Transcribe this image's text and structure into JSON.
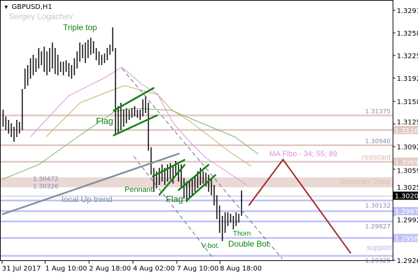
{
  "header": {
    "symbol": "GBPUSD,H1",
    "author": "Sergey Logachev"
  },
  "colors": {
    "bars": "#000000",
    "pink_level": "#e0c8c0",
    "blue_level": "#c0c0f8",
    "zone": "#ead8d4",
    "trend": "#8090a0",
    "pattern": "#108010",
    "forecast": "#a02828",
    "ma34": "#e090e0",
    "ma55": "#c0b060",
    "ma89": "#80b070",
    "channel": "#607080"
  },
  "chart_data": {
    "type": "bar",
    "title": "GBPUSD,H1",
    "ylim": [
      1.2926,
      1.3306
    ],
    "y_ticks": [
      "1.32910",
      "1.32580",
      "1.32250",
      "1.31920",
      "1.31580",
      "1.31250",
      "1.30920",
      "1.30590",
      "1.30250",
      "1.29920",
      "1.29260"
    ],
    "x_ticks": [
      {
        "label": "31 Jul 2017",
        "bar": -0.25
      },
      {
        "label": "1 Aug 10:00",
        "bar": 15.5
      },
      {
        "label": "2 Aug 18:00",
        "bar": 31.5
      },
      {
        "label": "4 Aug 02:00",
        "bar": 47.5
      },
      {
        "label": "7 Aug 10:00",
        "bar": 63.5
      },
      {
        "label": "8 Aug 18:00",
        "bar": 79.25
      }
    ],
    "bars_high": [
      1.3146,
      1.3136,
      1.3131,
      1.3126,
      1.3121,
      1.3131,
      1.3128,
      1.3176,
      1.3206,
      1.3211,
      1.3221,
      1.3226,
      1.3221,
      1.3236,
      1.3231,
      1.3238,
      1.3231,
      1.3236,
      1.3244,
      1.3236,
      1.3226,
      1.3216,
      1.3216,
      1.3218,
      1.3214,
      1.3211,
      1.3221,
      1.3231,
      1.3244,
      1.3241,
      1.3244,
      1.3248,
      1.3251,
      1.3246,
      1.3236,
      1.3231,
      1.3226,
      1.3228,
      1.3236,
      1.3241,
      1.3266,
      1.3236,
      1.3151,
      1.3156,
      1.3146,
      1.3148,
      1.3146,
      1.3148,
      1.3151,
      1.3146,
      1.3146,
      1.3161,
      1.3166,
      1.3156,
      1.3091,
      1.3061,
      1.3056,
      1.3061,
      1.3066,
      1.3061,
      1.3066,
      1.3068,
      1.3064,
      1.3071,
      1.3066,
      1.3066,
      1.3046,
      1.3041,
      1.3041,
      1.3046,
      1.3048,
      1.3056,
      1.3061,
      1.3056,
      1.3054,
      1.3051,
      1.3046,
      1.3036,
      1.3021,
      1.3006,
      1.2991,
      1.2996,
      1.2996,
      1.2994,
      1.2991,
      1.2996,
      1.2994,
      1.3028
    ],
    "bars_low": [
      1.3121,
      1.3116,
      1.3111,
      1.3106,
      1.3099,
      1.3106,
      1.3111,
      1.3116,
      1.3176,
      1.3181,
      1.3191,
      1.3196,
      1.3201,
      1.3206,
      1.3211,
      1.3201,
      1.3196,
      1.3201,
      1.3206,
      1.3198,
      1.3196,
      1.3201,
      1.3196,
      1.3201,
      1.3194,
      1.3191,
      1.3196,
      1.3206,
      1.3216,
      1.3221,
      1.3214,
      1.3221,
      1.3226,
      1.3228,
      1.3218,
      1.3211,
      1.3211,
      1.3214,
      1.3218,
      1.3226,
      1.3231,
      1.3111,
      1.3111,
      1.3116,
      1.3121,
      1.3126,
      1.3131,
      1.3134,
      1.3136,
      1.3134,
      1.3131,
      1.3136,
      1.3141,
      1.3086,
      1.3051,
      1.3026,
      1.3031,
      1.3036,
      1.3041,
      1.3036,
      1.3041,
      1.3044,
      1.3038,
      1.3051,
      1.3041,
      1.3031,
      1.3016,
      1.3011,
      1.3016,
      1.3021,
      1.3026,
      1.3031,
      1.3036,
      1.3038,
      1.3034,
      1.3026,
      1.3021,
      1.3006,
      1.2986,
      1.2966,
      1.2954,
      1.2966,
      1.2976,
      1.2981,
      1.2971,
      1.2976,
      1.2981,
      1.2991
    ],
    "moving_averages": [
      {
        "name": "MA 34",
        "color": "#e090e0",
        "points": [
          [
            10,
            1.3106
          ],
          [
            24,
            1.3166
          ],
          [
            36.5,
            1.3191
          ],
          [
            43.5,
            1.3208
          ],
          [
            50.75,
            1.3183
          ],
          [
            56.5,
            1.3169
          ],
          [
            58.5,
            1.3153
          ],
          [
            62.25,
            1.3126
          ],
          [
            68.25,
            1.3099
          ],
          [
            74,
            1.3076
          ],
          [
            81.5,
            1.3056
          ],
          [
            89,
            1.3036
          ]
        ]
      },
      {
        "name": "MA 55",
        "color": "#c0b060",
        "points": [
          [
            15.75,
            1.3106
          ],
          [
            28.25,
            1.3156
          ],
          [
            39,
            1.3173
          ],
          [
            44.5,
            1.3181
          ],
          [
            56.5,
            1.3168
          ],
          [
            61.5,
            1.3146
          ],
          [
            68.25,
            1.3129
          ],
          [
            75.75,
            1.3106
          ],
          [
            83.25,
            1.3083
          ],
          [
            90.75,
            1.3063
          ]
        ]
      },
      {
        "name": "MA 89",
        "color": "#80b070",
        "points": [
          [
            -0.25,
            1.3044
          ],
          [
            13.25,
            1.3066
          ],
          [
            27.25,
            1.3106
          ],
          [
            40.75,
            1.3143
          ],
          [
            47.25,
            1.3148
          ],
          [
            57.25,
            1.3146
          ],
          [
            61.5,
            1.3145
          ],
          [
            71.5,
            1.3128
          ],
          [
            84.75,
            1.3106
          ],
          [
            93.25,
            1.3081
          ]
        ]
      }
    ],
    "levels": [
      {
        "price": "1.31375",
        "kind": "pink",
        "label": "1.31375",
        "axis_badge": false
      },
      {
        "price": "1.31162",
        "kind": "pink",
        "label": "",
        "axis_badge": true
      },
      {
        "price": "1.30940",
        "kind": "pink",
        "label": "1.30940",
        "axis_badge": false
      },
      {
        "price": "1.30699",
        "kind": "pink",
        "label": "",
        "axis_badge": true
      },
      {
        "price": "1.30132",
        "kind": "blue",
        "label": "1.30132",
        "axis_badge": false
      },
      {
        "price": "1.29978",
        "kind": "blue",
        "label": "",
        "axis_badge": true
      },
      {
        "price": "1.29827",
        "kind": "blue",
        "label": "1.29827",
        "axis_badge": false
      },
      {
        "price": "1.29586",
        "kind": "blue",
        "label": "",
        "axis_badge": true
      },
      {
        "price": "1.29325",
        "kind": "blue",
        "label": "1.29325",
        "axis_badge": false
      }
    ],
    "current_price": "1.30203",
    "resistant_zone": {
      "top": "1.30472",
      "bottom": "1.30326",
      "label": "Resistant Zone"
    },
    "lines": [
      {
        "name": "local-up-trend",
        "color": "#8090a0",
        "style": "solid-thick",
        "points": [
          [
            -0.25,
            1.2993
          ],
          [
            64.5,
            1.3082
          ]
        ]
      },
      {
        "name": "flag1-upper",
        "color": "#108010",
        "style": "solid",
        "points": [
          [
            40.25,
            1.3144
          ],
          [
            55.25,
            1.3178
          ]
        ]
      },
      {
        "name": "flag1-lower",
        "color": "#108010",
        "style": "solid",
        "points": [
          [
            40.25,
            1.3108
          ],
          [
            56.5,
            1.3138
          ]
        ]
      },
      {
        "name": "pennant-upper",
        "color": "#108010",
        "style": "solid",
        "points": [
          [
            54.5,
            1.3048
          ],
          [
            66.5,
            1.3073
          ]
        ]
      },
      {
        "name": "pennant-lower",
        "color": "#108010",
        "style": "solid",
        "points": [
          [
            57,
            1.3021
          ],
          [
            66.5,
            1.3066
          ]
        ]
      },
      {
        "name": "flag2-upper",
        "color": "#108010",
        "style": "solid",
        "points": [
          [
            64,
            1.3028
          ],
          [
            75.25,
            1.3066
          ]
        ]
      },
      {
        "name": "flag2-lower",
        "color": "#108010",
        "style": "solid",
        "points": [
          [
            67,
            1.3013
          ],
          [
            77.75,
            1.3051
          ]
        ]
      },
      {
        "name": "channel-upper",
        "color": "#607080",
        "style": "dashed",
        "points": [
          [
            43.5,
            1.3206
          ],
          [
            102,
            1.2928
          ]
        ]
      },
      {
        "name": "channel-lower",
        "color": "#607080",
        "style": "dashed",
        "points": [
          [
            47.75,
            1.3078
          ],
          [
            77,
            1.2928
          ]
        ]
      },
      {
        "name": "forecast",
        "color": "#a02828",
        "style": "solid",
        "points": [
          [
            89.75,
            1.3006
          ],
          [
            102.25,
            1.3073
          ],
          [
            127,
            1.2936
          ]
        ]
      }
    ]
  },
  "annotations": {
    "triple_top": "Triple top",
    "flag1": "Flag",
    "pennant": "Pennant",
    "flag2": "Flag",
    "local_up_trend": "local Up trend",
    "v_bottom": "V-bot.",
    "thorn": "Thorn",
    "double_bottom": "Double Bot.",
    "ma_fibo": "MA Fibo - 34; 55; 89",
    "resistant": "resistant",
    "support": "support",
    "zone_top": "1.30472",
    "zone_bottom": "1.30326"
  }
}
